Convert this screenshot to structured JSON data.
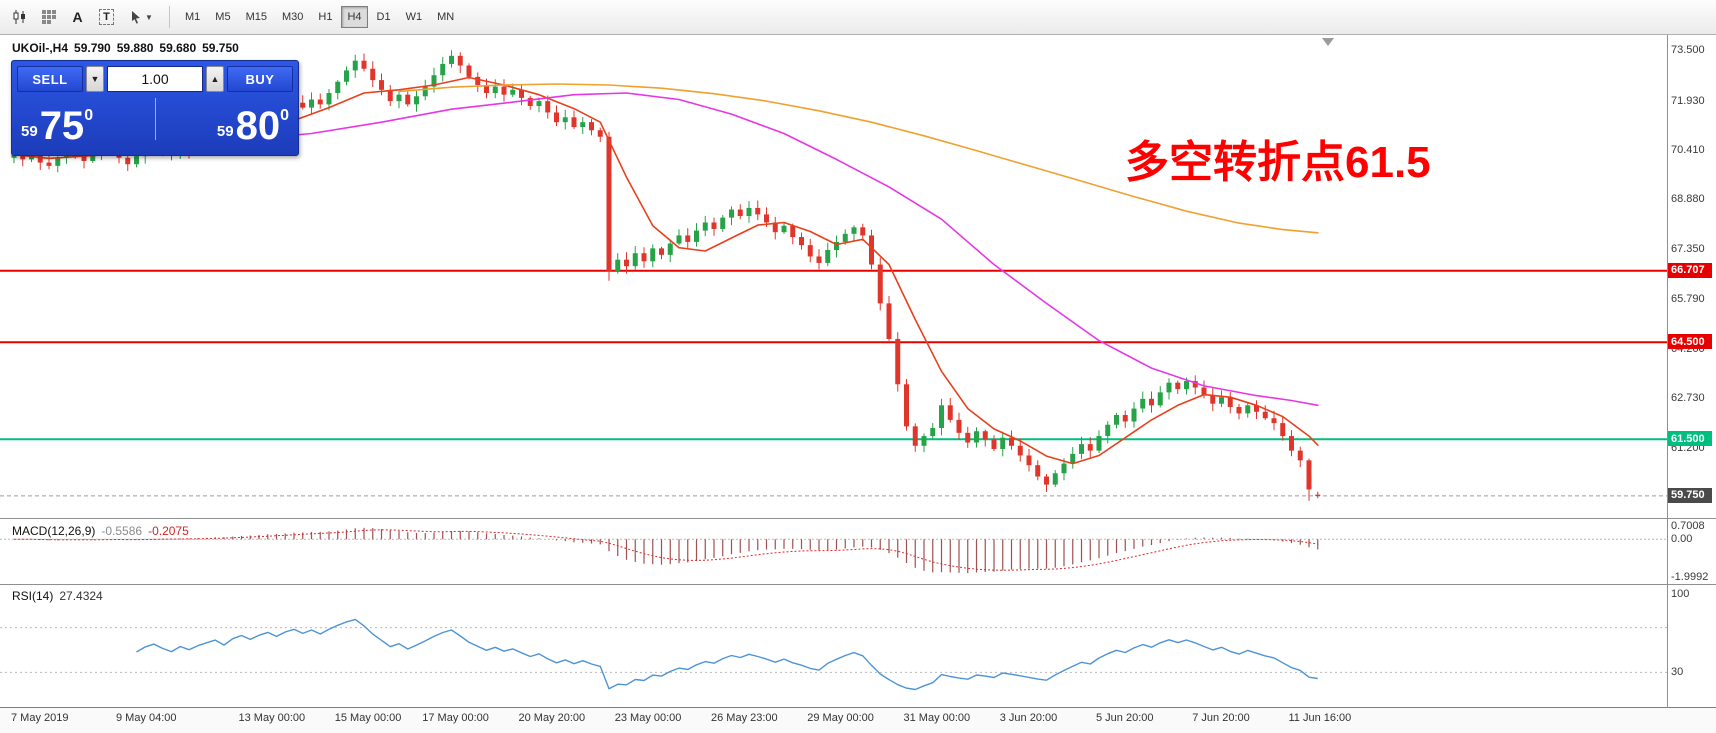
{
  "toolbar": {
    "timeframes": [
      "M1",
      "M5",
      "M15",
      "M30",
      "H1",
      "H4",
      "D1",
      "W1",
      "MN"
    ],
    "active_timeframe": "H4",
    "text_label_glyph": "A",
    "text_box_glyph": "T"
  },
  "symbol_header": {
    "symbol": "UKOil-,H4",
    "open": "59.790",
    "high": "59.880",
    "low": "59.680",
    "close": "59.750"
  },
  "trade_panel": {
    "sell_label": "SELL",
    "buy_label": "BUY",
    "volume": "1.00",
    "sell_price_small": "59",
    "sell_price_big": "75",
    "sell_price_sup": "0",
    "buy_price_small": "59",
    "buy_price_big": "80",
    "buy_price_sup": "0"
  },
  "annotation": {
    "text": "多空转折点61.5",
    "color": "#ff0000"
  },
  "price_axis": {
    "ticks": [
      {
        "price": 73.5,
        "label": "73.500"
      },
      {
        "price": 71.93,
        "label": "71.930"
      },
      {
        "price": 70.41,
        "label": "70.410"
      },
      {
        "price": 68.88,
        "label": "68.880"
      },
      {
        "price": 67.35,
        "label": "67.350"
      },
      {
        "price": 65.79,
        "label": "65.790"
      },
      {
        "price": 64.26,
        "label": "64.260"
      },
      {
        "price": 62.73,
        "label": "62.730"
      },
      {
        "price": 61.2,
        "label": "61.200"
      }
    ]
  },
  "levels": [
    {
      "price": 66.707,
      "label": "66.707",
      "color": "#e60000",
      "badge_bg": "#e60000",
      "style": "solid",
      "width": 2
    },
    {
      "price": 64.5,
      "label": "64.500",
      "color": "#e60000",
      "badge_bg": "#e60000",
      "style": "solid",
      "width": 2
    },
    {
      "price": 61.5,
      "label": "61.500",
      "color": "#00bf7e",
      "badge_bg": "#00bf7e",
      "style": "solid",
      "width": 2
    },
    {
      "price": 59.75,
      "label": "59.750",
      "color": "#9a9a9a",
      "badge_bg": "#4a4a4a",
      "style": "dashed",
      "width": 1
    }
  ],
  "macd": {
    "name": "MACD(12,26,9)",
    "main_value": "-0.5586",
    "signal_value": "-0.2075",
    "params": {
      "fast": 12,
      "slow": 26,
      "signal": 9
    },
    "scale": {
      "max": 0.7008,
      "min": -1.9992
    },
    "axis_labels": [
      {
        "value": 0.7008,
        "label": "0.7008"
      },
      {
        "value": 0.0,
        "label": "0.00"
      },
      {
        "value": -1.9992,
        "label": "-1.9992"
      }
    ]
  },
  "rsi": {
    "name": "RSI(14)",
    "value": "27.4324",
    "period": 14,
    "levels": [
      70,
      30
    ],
    "axis_labels": [
      {
        "value": 100,
        "label": "100"
      },
      {
        "value": 30,
        "label": "30"
      }
    ]
  },
  "chart_data": {
    "type": "candlestick",
    "symbol": "UKOil-",
    "timeframe": "H4",
    "ylim": [
      59.19,
      73.87
    ],
    "first_open": 70.2,
    "closes": [
      70.35,
      70.15,
      70.3,
      70.05,
      69.95,
      70.2,
      70.45,
      70.3,
      70.1,
      70.35,
      70.55,
      70.4,
      70.2,
      70.0,
      70.25,
      70.5,
      70.65,
      70.45,
      70.3,
      70.55,
      70.4,
      70.6,
      70.75,
      70.9,
      70.7,
      71.05,
      71.25,
      71.1,
      71.35,
      71.55,
      71.4,
      71.7,
      71.9,
      71.75,
      72.0,
      71.85,
      72.2,
      72.55,
      72.9,
      73.2,
      72.95,
      72.6,
      72.3,
      71.95,
      72.15,
      71.85,
      72.1,
      72.4,
      72.75,
      73.1,
      73.35,
      73.05,
      72.7,
      72.45,
      72.2,
      72.4,
      72.15,
      72.3,
      72.05,
      71.8,
      71.95,
      71.6,
      71.3,
      71.45,
      71.15,
      71.3,
      71.05,
      70.85,
      66.7,
      67.05,
      66.85,
      67.25,
      67.0,
      67.4,
      67.2,
      67.55,
      67.8,
      67.6,
      67.95,
      68.2,
      68.0,
      68.35,
      68.6,
      68.4,
      68.65,
      68.45,
      68.2,
      67.9,
      68.1,
      67.75,
      67.5,
      67.15,
      66.95,
      67.35,
      67.6,
      67.85,
      68.05,
      67.8,
      66.9,
      65.7,
      64.6,
      63.2,
      61.9,
      61.3,
      61.6,
      61.85,
      62.55,
      62.1,
      61.7,
      61.4,
      61.75,
      61.5,
      61.2,
      61.55,
      61.3,
      61.0,
      60.7,
      60.35,
      60.1,
      60.45,
      60.75,
      61.05,
      61.35,
      61.15,
      61.6,
      61.95,
      62.25,
      62.05,
      62.45,
      62.75,
      62.55,
      62.95,
      63.25,
      63.05,
      63.3,
      63.1,
      62.85,
      62.6,
      62.8,
      62.5,
      62.3,
      62.55,
      62.35,
      62.15,
      62.0,
      61.6,
      61.15,
      60.85,
      59.95,
      59.75
    ],
    "overrides": {
      "68": {
        "l": 66.4
      },
      "148": {
        "l": 59.6
      },
      "149": {
        "o": 59.79,
        "h": 59.88,
        "l": 59.68,
        "c": 59.75
      }
    },
    "moving_averages": [
      {
        "name": "ma-fast",
        "color": "#e8401c",
        "points": [
          [
            0,
            70.3
          ],
          [
            4,
            70.18
          ],
          [
            8,
            70.25
          ],
          [
            12,
            70.32
          ],
          [
            16,
            70.4
          ],
          [
            20,
            70.48
          ],
          [
            24,
            70.62
          ],
          [
            28,
            70.95
          ],
          [
            32,
            71.35
          ],
          [
            36,
            71.75
          ],
          [
            40,
            72.2
          ],
          [
            44,
            72.3
          ],
          [
            48,
            72.45
          ],
          [
            52,
            72.68
          ],
          [
            56,
            72.45
          ],
          [
            60,
            72.15
          ],
          [
            64,
            71.72
          ],
          [
            67,
            71.3
          ],
          [
            70,
            69.6
          ],
          [
            73,
            68.1
          ],
          [
            76,
            67.42
          ],
          [
            79,
            67.32
          ],
          [
            82,
            67.72
          ],
          [
            85,
            68.12
          ],
          [
            88,
            68.2
          ],
          [
            91,
            67.92
          ],
          [
            94,
            67.52
          ],
          [
            97,
            67.68
          ],
          [
            100,
            66.9
          ],
          [
            103,
            65.2
          ],
          [
            106,
            63.6
          ],
          [
            109,
            62.45
          ],
          [
            112,
            61.82
          ],
          [
            115,
            61.45
          ],
          [
            118,
            60.98
          ],
          [
            121,
            60.75
          ],
          [
            124,
            61.0
          ],
          [
            127,
            61.55
          ],
          [
            130,
            62.1
          ],
          [
            133,
            62.55
          ],
          [
            136,
            62.88
          ],
          [
            139,
            62.8
          ],
          [
            142,
            62.55
          ],
          [
            145,
            62.2
          ],
          [
            148,
            61.6
          ],
          [
            149,
            61.32
          ]
        ]
      },
      {
        "name": "ma-mid",
        "color": "#e636e6",
        "points": [
          [
            0,
            70.75
          ],
          [
            12,
            70.6
          ],
          [
            24,
            70.7
          ],
          [
            34,
            70.95
          ],
          [
            42,
            71.3
          ],
          [
            50,
            71.7
          ],
          [
            58,
            71.95
          ],
          [
            64,
            72.15
          ],
          [
            70,
            72.2
          ],
          [
            76,
            72.0
          ],
          [
            82,
            71.55
          ],
          [
            88,
            70.95
          ],
          [
            94,
            70.15
          ],
          [
            100,
            69.3
          ],
          [
            106,
            68.3
          ],
          [
            112,
            66.9
          ],
          [
            118,
            65.7
          ],
          [
            124,
            64.55
          ],
          [
            130,
            63.7
          ],
          [
            136,
            63.15
          ],
          [
            142,
            62.85
          ],
          [
            146,
            62.7
          ],
          [
            149,
            62.55
          ]
        ]
      },
      {
        "name": "ma-slow",
        "color": "#f0a030",
        "points": [
          [
            44,
            72.25
          ],
          [
            50,
            72.38
          ],
          [
            56,
            72.45
          ],
          [
            62,
            72.48
          ],
          [
            68,
            72.45
          ],
          [
            74,
            72.35
          ],
          [
            80,
            72.18
          ],
          [
            86,
            71.95
          ],
          [
            92,
            71.65
          ],
          [
            98,
            71.3
          ],
          [
            104,
            70.88
          ],
          [
            110,
            70.42
          ],
          [
            116,
            69.95
          ],
          [
            122,
            69.48
          ],
          [
            128,
            69.0
          ],
          [
            134,
            68.55
          ],
          [
            140,
            68.18
          ],
          [
            145,
            67.98
          ],
          [
            149,
            67.88
          ]
        ]
      }
    ],
    "time_labels": [
      {
        "i": 0,
        "label": "7 May 2019"
      },
      {
        "i": 12,
        "label": "9 May 04:00"
      },
      {
        "i": 26,
        "label": "13 May 00:00"
      },
      {
        "i": 37,
        "label": "15 May 00:00"
      },
      {
        "i": 47,
        "label": "17 May 00:00"
      },
      {
        "i": 58,
        "label": "20 May 20:00"
      },
      {
        "i": 69,
        "label": "23 May 00:00"
      },
      {
        "i": 80,
        "label": "26 May 23:00"
      },
      {
        "i": 91,
        "label": "29 May 00:00"
      },
      {
        "i": 102,
        "label": "31 May 00:00"
      },
      {
        "i": 113,
        "label": "3 Jun 20:00"
      },
      {
        "i": 124,
        "label": "5 Jun 20:00"
      },
      {
        "i": 135,
        "label": "7 Jun 20:00"
      },
      {
        "i": 146,
        "label": "11 Jun 16:00"
      }
    ],
    "colors": {
      "bull": "#26a248",
      "bear": "#e0352b",
      "macd_hist": "#a05050",
      "macd_signal": "#dd2a2a",
      "rsi_line": "#4d94d6",
      "rsi_level": "#b9b9b9"
    }
  }
}
